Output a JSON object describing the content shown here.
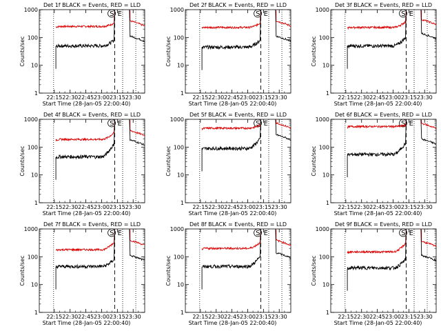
{
  "chart_data": {
    "type": "line",
    "y_scale": "log",
    "ylabel": "Counts/sec",
    "xlabel": "Start Time (28-Jan-05 22:00:40)",
    "x_tick_labels": [
      "22:15",
      "22:30",
      "22:45",
      "23:00",
      "23:15",
      "23:30"
    ],
    "x_tick_minutes": [
      15,
      30,
      45,
      60,
      75,
      90
    ],
    "x_range_minutes": [
      0.67,
      101
    ],
    "y_tick_labels": [
      "1",
      "10",
      "100",
      "1000"
    ],
    "ylim": [
      1,
      1000
    ],
    "markers": [
      {
        "label": "S",
        "minute": 72.5,
        "style": "dashed"
      },
      {
        "label": "E",
        "minute": 80.0,
        "style": "dotted"
      }
    ],
    "other_lines": [
      {
        "minute": 14.3,
        "style": "dotted"
      },
      {
        "minute": 92.5,
        "style": "dotted"
      }
    ],
    "panels": [
      {
        "title": "Det 1f BLACK = Events, RED = LLD",
        "red_level": 250,
        "black_level": 50,
        "red_end": 330,
        "black_end": 80
      },
      {
        "title": "Det 2f BLACK = Events, RED = LLD",
        "red_level": 230,
        "black_level": 45,
        "red_end": 330,
        "black_end": 80
      },
      {
        "title": "Det 3f BLACK = Events, RED = LLD",
        "red_level": 230,
        "black_level": 50,
        "red_end": 370,
        "black_end": 100
      },
      {
        "title": "Det 4f BLACK = Events, RED = LLD",
        "red_level": 190,
        "black_level": 45,
        "red_end": 330,
        "black_end": 130
      },
      {
        "title": "Det 5f BLACK = Events, RED = LLD",
        "red_level": 480,
        "black_level": 90,
        "red_end": 620,
        "black_end": 200
      },
      {
        "title": "Det 6f BLACK = Events, RED = LLD",
        "red_level": 550,
        "black_level": 55,
        "red_end": 600,
        "black_end": 140
      },
      {
        "title": "Det 7f BLACK = Events, RED = LLD",
        "red_level": 180,
        "black_level": 45,
        "red_end": 330,
        "black_end": 80
      },
      {
        "title": "Det 8f BLACK = Events, RED = LLD",
        "red_level": 200,
        "black_level": 45,
        "red_end": 330,
        "black_end": 100
      },
      {
        "title": "Det 9f BLACK = Events, RED = LLD",
        "red_level": 150,
        "black_level": 40,
        "red_end": 300,
        "black_end": 80
      }
    ],
    "series": [
      {
        "color": "#000000"
      },
      {
        "color": "#dd0000"
      }
    ]
  }
}
